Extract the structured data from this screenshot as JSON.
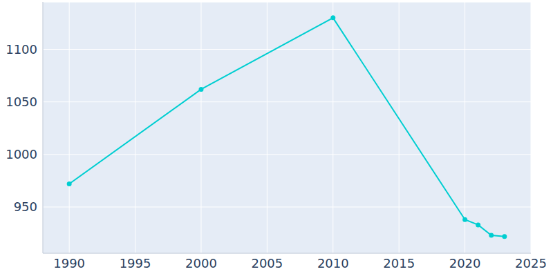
{
  "chart_data": {
    "type": "line",
    "x": [
      1990,
      2000,
      2010,
      2020,
      2021,
      2022,
      2023
    ],
    "values": [
      972,
      1062,
      1130,
      938,
      933,
      923,
      922
    ],
    "color": "#00ced1",
    "xlim": [
      1988,
      2025
    ],
    "xticks": [
      1990,
      1995,
      2000,
      2005,
      2010,
      2015,
      2020,
      2025
    ],
    "ylim": [
      906,
      1145
    ],
    "yticks": [
      950,
      1000,
      1050,
      1100
    ],
    "grid": true,
    "marker": "circle"
  }
}
